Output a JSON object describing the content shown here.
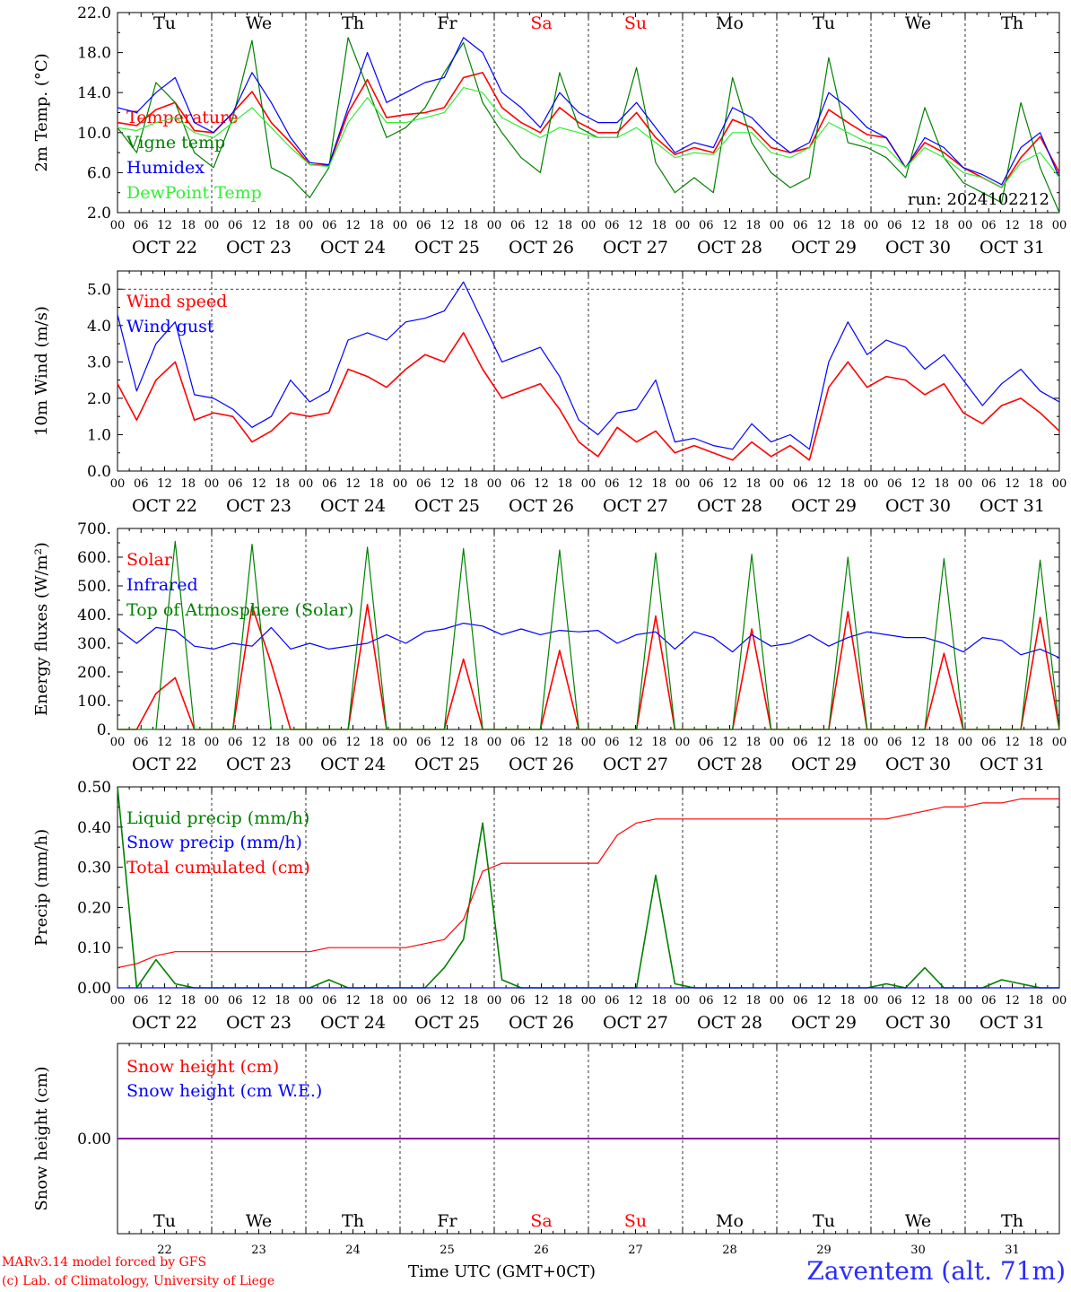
{
  "colors": {
    "red": "#ff0000",
    "green": "#008000",
    "blue": "#0000ff",
    "lightgreen": "#33ee33",
    "weekend": "#ff0000",
    "purple": "#7700aa"
  },
  "day_names": [
    "Tu",
    "We",
    "Th",
    "Fr",
    "Sa",
    "Su",
    "Mo",
    "Tu",
    "We",
    "Th"
  ],
  "weekend_flags": [
    false,
    false,
    false,
    false,
    true,
    true,
    false,
    false,
    false,
    false
  ],
  "date_labels": [
    "OCT 22",
    "OCT 23",
    "OCT 24",
    "OCT 25",
    "OCT 26",
    "OCT 27",
    "OCT 28",
    "OCT 29",
    "OCT 30",
    "OCT 31"
  ],
  "day_numbers": [
    "22",
    "23",
    "24",
    "25",
    "26",
    "27",
    "28",
    "29",
    "30",
    "31"
  ],
  "hour_ticks": [
    "00",
    "06",
    "12",
    "18"
  ],
  "last_hour_tick": "00",
  "footer": {
    "credit_line1": "MARv3.14 model forced by GFS",
    "credit_line2": "(c) Lab. of Climatology, University of Liege",
    "axis_title": "Time UTC (GMT+0CT)",
    "station": "Zaventem (alt. 71m)"
  },
  "chart_data": [
    {
      "type": "line",
      "ylabel": "2m Temp. (°C)",
      "ylim": [
        2.0,
        22.0
      ],
      "yticks": [
        "2.0",
        "6.0",
        "10.0",
        "14.0",
        "18.0",
        "22.0"
      ],
      "ytick_values": [
        2,
        6,
        10,
        14,
        18,
        22
      ],
      "show_day_names": true,
      "annotation": "run: 2024102212",
      "x_start": "OCT 22 00",
      "x_step_hours": 6,
      "series": [
        {
          "name": "Temperature",
          "color": "#ff0000",
          "values": [
            11.0,
            10.7,
            12.3,
            13.0,
            10.2,
            10.0,
            12.0,
            14.1,
            11.0,
            9.0,
            6.8,
            6.7,
            12.0,
            15.3,
            11.5,
            11.8,
            12.0,
            12.5,
            15.5,
            16.0,
            12.5,
            11.0,
            10.0,
            12.5,
            11.0,
            10.0,
            10.0,
            12.0,
            9.5,
            7.8,
            8.5,
            8.0,
            11.3,
            10.5,
            8.5,
            8.0,
            8.5,
            12.3,
            11.0,
            9.8,
            9.5,
            6.5,
            9.0,
            8.0,
            6.5,
            5.5,
            4.5,
            7.5,
            9.6,
            6.0
          ]
        },
        {
          "name": "Vigne temp",
          "color": "#008000",
          "values": [
            10.5,
            8.0,
            15.0,
            13.0,
            8.0,
            6.5,
            11.5,
            19.2,
            6.5,
            5.5,
            3.5,
            6.5,
            19.5,
            14.5,
            9.5,
            10.5,
            12.5,
            16.0,
            19.0,
            13.0,
            10.0,
            7.5,
            6.0,
            16.0,
            10.5,
            9.5,
            9.5,
            16.5,
            7.0,
            4.0,
            5.5,
            4.0,
            15.5,
            9.0,
            6.0,
            4.5,
            5.5,
            17.5,
            9.0,
            8.5,
            7.5,
            5.5,
            12.5,
            7.5,
            5.0,
            4.0,
            3.0,
            13.0,
            6.5,
            2.0
          ]
        },
        {
          "name": "Humidex",
          "color": "#0000ff",
          "values": [
            12.5,
            12.0,
            14.0,
            15.5,
            11.0,
            10.0,
            12.0,
            16.0,
            13.0,
            9.5,
            7.0,
            6.8,
            12.5,
            18.0,
            13.0,
            14.0,
            15.0,
            15.5,
            19.5,
            18.0,
            14.0,
            12.5,
            10.5,
            14.0,
            12.0,
            11.0,
            11.0,
            13.0,
            10.5,
            8.0,
            9.0,
            8.5,
            12.5,
            11.5,
            9.5,
            8.0,
            9.0,
            14.0,
            12.5,
            10.5,
            9.5,
            6.5,
            9.5,
            8.5,
            6.5,
            5.8,
            4.8,
            8.5,
            10.0,
            5.5
          ]
        },
        {
          "name": "DewPoint Temp",
          "color": "#33ee33",
          "values": [
            10.5,
            10.2,
            11.0,
            11.5,
            10.0,
            9.5,
            11.0,
            12.5,
            10.5,
            8.5,
            6.8,
            6.6,
            11.0,
            13.5,
            11.0,
            11.0,
            11.5,
            12.0,
            14.5,
            14.0,
            11.5,
            10.5,
            9.5,
            10.5,
            10.0,
            9.5,
            9.5,
            10.5,
            9.0,
            7.5,
            8.0,
            7.8,
            10.0,
            10.0,
            8.0,
            7.5,
            8.5,
            11.0,
            10.0,
            9.0,
            8.5,
            6.5,
            8.5,
            7.5,
            6.0,
            5.5,
            4.5,
            7.0,
            8.0,
            5.5
          ]
        }
      ]
    },
    {
      "type": "line",
      "ylabel": "10m Wind (m/s)",
      "ylim": [
        0.0,
        5.5
      ],
      "yticks": [
        "0.0",
        "1.0",
        "2.0",
        "3.0",
        "4.0",
        "5.0"
      ],
      "ytick_values": [
        0,
        1,
        2,
        3,
        4,
        5
      ],
      "dashed_y": 5.0,
      "show_day_names": false,
      "x_start": "OCT 22 00",
      "x_step_hours": 6,
      "series": [
        {
          "name": "Wind speed",
          "color": "#ff0000",
          "values": [
            2.4,
            1.4,
            2.5,
            3.0,
            1.4,
            1.6,
            1.5,
            0.8,
            1.1,
            1.6,
            1.5,
            1.6,
            2.8,
            2.6,
            2.3,
            2.8,
            3.2,
            3.0,
            3.8,
            2.8,
            2.0,
            2.2,
            2.4,
            1.7,
            0.8,
            0.4,
            1.2,
            0.8,
            1.1,
            0.5,
            0.7,
            0.5,
            0.3,
            0.8,
            0.4,
            0.7,
            0.3,
            2.3,
            3.0,
            2.3,
            2.6,
            2.5,
            2.1,
            2.4,
            1.6,
            1.3,
            1.8,
            2.0,
            1.6,
            1.1
          ]
        },
        {
          "name": "Wind gust",
          "color": "#0000ff",
          "values": [
            4.3,
            2.2,
            3.5,
            4.1,
            2.1,
            2.0,
            1.7,
            1.2,
            1.5,
            2.5,
            1.9,
            2.2,
            3.6,
            3.8,
            3.6,
            4.1,
            4.2,
            4.4,
            5.2,
            4.1,
            3.0,
            3.2,
            3.4,
            2.6,
            1.4,
            1.0,
            1.6,
            1.7,
            2.5,
            0.8,
            0.9,
            0.7,
            0.6,
            1.3,
            0.8,
            1.0,
            0.6,
            3.0,
            4.1,
            3.2,
            3.6,
            3.4,
            2.8,
            3.2,
            2.5,
            1.8,
            2.4,
            2.8,
            2.2,
            1.9
          ]
        }
      ]
    },
    {
      "type": "line",
      "ylabel": "Energy fluxes (W/m²)",
      "ylim": [
        0,
        700
      ],
      "yticks": [
        "0.",
        "100.",
        "200.",
        "300.",
        "400.",
        "500.",
        "600.",
        "700."
      ],
      "ytick_values": [
        0,
        100,
        200,
        300,
        400,
        500,
        600,
        700
      ],
      "show_day_names": false,
      "x_start": "OCT 22 00",
      "x_step_hours": 6,
      "series": [
        {
          "name": "Solar",
          "color": "#ff0000",
          "values": [
            0,
            0,
            125,
            180,
            0,
            0,
            0,
            430,
            230,
            0,
            0,
            0,
            0,
            435,
            0,
            0,
            0,
            0,
            245,
            0,
            0,
            0,
            0,
            275,
            0,
            0,
            0,
            0,
            395,
            0,
            0,
            0,
            0,
            350,
            0,
            0,
            0,
            0,
            410,
            0,
            0,
            0,
            0,
            265,
            0,
            0,
            0,
            0,
            390,
            0
          ]
        },
        {
          "name": "Infrared",
          "color": "#0000ff",
          "values": [
            350,
            300,
            355,
            345,
            290,
            280,
            300,
            290,
            355,
            280,
            300,
            280,
            290,
            300,
            330,
            300,
            340,
            350,
            370,
            360,
            330,
            350,
            330,
            345,
            340,
            345,
            300,
            330,
            340,
            280,
            340,
            320,
            270,
            330,
            290,
            300,
            330,
            290,
            320,
            340,
            330,
            320,
            320,
            300,
            270,
            320,
            310,
            260,
            280,
            250
          ]
        },
        {
          "name": "Top of Atmosphere (Solar)",
          "color": "#008000",
          "values": [
            0,
            0,
            0,
            655,
            0,
            0,
            0,
            645,
            0,
            0,
            0,
            0,
            0,
            635,
            0,
            0,
            0,
            0,
            630,
            0,
            0,
            0,
            0,
            625,
            0,
            0,
            0,
            0,
            615,
            0,
            0,
            0,
            0,
            610,
            0,
            0,
            0,
            0,
            600,
            0,
            0,
            0,
            0,
            595,
            0,
            0,
            0,
            0,
            590,
            0
          ]
        }
      ]
    },
    {
      "type": "line",
      "ylabel": "Precip (mm/h)",
      "ylim": [
        0.0,
        0.5
      ],
      "yticks": [
        "0.00",
        "0.10",
        "0.20",
        "0.30",
        "0.40",
        "0.50"
      ],
      "ytick_values": [
        0,
        0.1,
        0.2,
        0.3,
        0.4,
        0.5
      ],
      "show_day_names": false,
      "x_start": "OCT 22 00",
      "x_step_hours": 6,
      "series": [
        {
          "name": "Liquid precip (mm/h)",
          "color": "#008000",
          "values": [
            0.5,
            0.0,
            0.07,
            0.01,
            0.0,
            0.0,
            0.0,
            0.0,
            0.0,
            0.0,
            0.0,
            0.02,
            0.0,
            0.0,
            0.0,
            0.0,
            0.0,
            0.05,
            0.12,
            0.41,
            0.02,
            0.0,
            0.0,
            0.0,
            0.0,
            0.0,
            0.0,
            0.0,
            0.28,
            0.01,
            0.0,
            0.0,
            0.0,
            0.0,
            0.0,
            0.0,
            0.0,
            0.0,
            0.0,
            0.0,
            0.01,
            0.0,
            0.05,
            0.0,
            0.0,
            0.0,
            0.02,
            0.01,
            0.0,
            0.0
          ]
        },
        {
          "name": "Snow precip (mm/h)",
          "color": "#0000ff",
          "values": [
            0,
            0,
            0,
            0,
            0,
            0,
            0,
            0,
            0,
            0,
            0,
            0,
            0,
            0,
            0,
            0,
            0,
            0,
            0,
            0,
            0,
            0,
            0,
            0,
            0,
            0,
            0,
            0,
            0,
            0,
            0,
            0,
            0,
            0,
            0,
            0,
            0,
            0,
            0,
            0,
            0,
            0,
            0,
            0,
            0,
            0,
            0,
            0,
            0,
            0
          ]
        },
        {
          "name": "Total cumulated (cm)",
          "color": "#ff0000",
          "values": [
            0.05,
            0.06,
            0.08,
            0.09,
            0.09,
            0.09,
            0.09,
            0.09,
            0.09,
            0.09,
            0.09,
            0.1,
            0.1,
            0.1,
            0.1,
            0.1,
            0.11,
            0.12,
            0.17,
            0.29,
            0.31,
            0.31,
            0.31,
            0.31,
            0.31,
            0.31,
            0.38,
            0.41,
            0.42,
            0.42,
            0.42,
            0.42,
            0.42,
            0.42,
            0.42,
            0.42,
            0.42,
            0.42,
            0.42,
            0.42,
            0.42,
            0.43,
            0.44,
            0.45,
            0.45,
            0.46,
            0.46,
            0.47,
            0.47,
            0.47
          ]
        }
      ]
    },
    {
      "type": "line",
      "ylabel": "Snow height (cm)",
      "ylim": [
        -1.0,
        1.0
      ],
      "yticks": [
        "0.00"
      ],
      "ytick_values": [
        0
      ],
      "show_day_names": true,
      "show_date_axis": false,
      "x_start": "OCT 22 00",
      "x_step_hours": 6,
      "series": [
        {
          "name": "Snow height (cm)",
          "color": "#ff0000",
          "values": [
            0,
            0,
            0,
            0,
            0,
            0,
            0,
            0,
            0,
            0,
            0,
            0,
            0,
            0,
            0,
            0,
            0,
            0,
            0,
            0,
            0,
            0,
            0,
            0,
            0,
            0,
            0,
            0,
            0,
            0,
            0,
            0,
            0,
            0,
            0,
            0,
            0,
            0,
            0,
            0,
            0,
            0,
            0,
            0,
            0,
            0,
            0,
            0,
            0,
            0
          ]
        },
        {
          "name": "Snow height (cm W.E.)",
          "color": "#0000ff",
          "values": [
            0,
            0,
            0,
            0,
            0,
            0,
            0,
            0,
            0,
            0,
            0,
            0,
            0,
            0,
            0,
            0,
            0,
            0,
            0,
            0,
            0,
            0,
            0,
            0,
            0,
            0,
            0,
            0,
            0,
            0,
            0,
            0,
            0,
            0,
            0,
            0,
            0,
            0,
            0,
            0,
            0,
            0,
            0,
            0,
            0,
            0,
            0,
            0,
            0,
            0
          ]
        }
      ]
    }
  ]
}
